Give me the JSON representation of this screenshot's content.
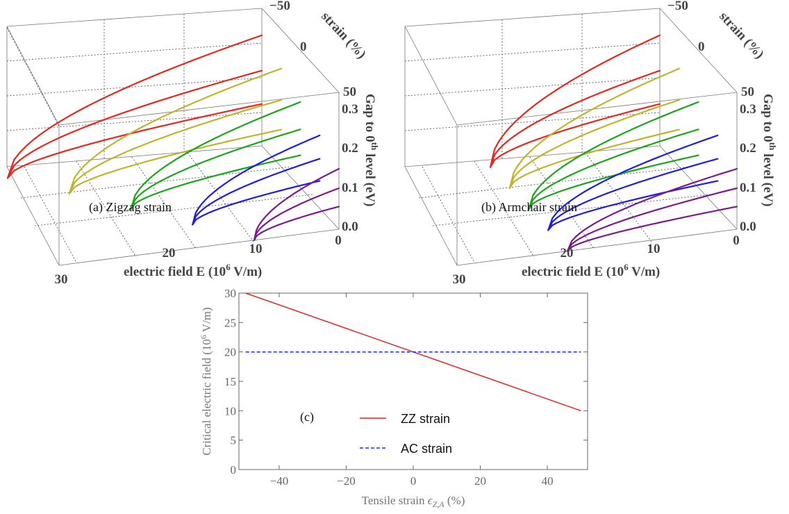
{
  "colors": {
    "red": "#e8261e",
    "yellow": "#bfb42a",
    "green": "#1aa51a",
    "blue": "#1c1ce6",
    "purple": "#7a1a8c",
    "zz_line": "#e32626",
    "ac_line": "#1f2fd6",
    "axis_gray": "#666666"
  },
  "chart_data": [
    {
      "type": "surface-3d-lines",
      "panel_label": "(a) Zigzag strain",
      "xlabel": "electric field E (10",
      "xlabel_sup": "6",
      "xlabel_tail": " V/m)",
      "ylabel": "strain (%)",
      "zlabel": "Gap to 0",
      "zlabel_sup": "th",
      "zlabel_tail": " level (eV)",
      "x_ticks": [
        "30",
        "20",
        "10",
        "0"
      ],
      "y_ticks": [
        "−50",
        "0",
        "50"
      ],
      "z_ticks": [
        "0.0",
        "0.1",
        "0.2",
        "0.3"
      ],
      "strain_values": [
        -50,
        -25,
        0,
        25,
        50
      ],
      "critical_fields": [
        30,
        25,
        20,
        15,
        10
      ],
      "curve_levels": [
        1,
        2,
        3
      ],
      "series_colors": [
        "red",
        "yellow",
        "green",
        "blue",
        "purple"
      ]
    },
    {
      "type": "surface-3d-lines",
      "panel_label": "(b) Armchair strain",
      "xlabel": "electric field E (10",
      "xlabel_sup": "6",
      "xlabel_tail": " V/m)",
      "ylabel": "strain (%)",
      "zlabel": "Gap to 0",
      "zlabel_sup": "th",
      "zlabel_tail": " level (eV)",
      "x_ticks": [
        "30",
        "20",
        "10",
        "0"
      ],
      "y_ticks": [
        "−50",
        "0",
        "50"
      ],
      "z_ticks": [
        "0.0",
        "0.1",
        "0.2",
        "0.3"
      ],
      "strain_values": [
        -50,
        -25,
        0,
        25,
        50
      ],
      "critical_fields": [
        20,
        20,
        20,
        20,
        20
      ],
      "curve_levels": [
        1,
        2,
        3
      ],
      "series_colors": [
        "red",
        "yellow",
        "green",
        "blue",
        "purple"
      ]
    },
    {
      "type": "line",
      "panel_label": "(c)",
      "xlabel": "Tensile strain ",
      "xlabel_math": "ϵ",
      "xlabel_sub": "Z,A",
      "xlabel_tail": " (%)",
      "ylabel": "Critical electric field (10",
      "ylabel_sup": "6",
      "ylabel_tail": " V/m)",
      "xlim": [
        -52,
        52
      ],
      "ylim": [
        0,
        30
      ],
      "x_ticks": [
        -40,
        -20,
        0,
        20,
        40
      ],
      "y_ticks": [
        0,
        5,
        10,
        15,
        20,
        25,
        30
      ],
      "x_tick_labels": [
        "−40",
        "−20",
        "0",
        "20",
        "40"
      ],
      "y_tick_labels": [
        "0",
        "5",
        "10",
        "15",
        "20",
        "25",
        "30"
      ],
      "series": [
        {
          "name": "ZZ strain",
          "x": [
            -50,
            50
          ],
          "y": [
            30,
            10
          ],
          "style": "solid"
        },
        {
          "name": "AC strain",
          "x": [
            -50,
            50
          ],
          "y": [
            20,
            20
          ],
          "style": "dashed"
        }
      ]
    }
  ]
}
